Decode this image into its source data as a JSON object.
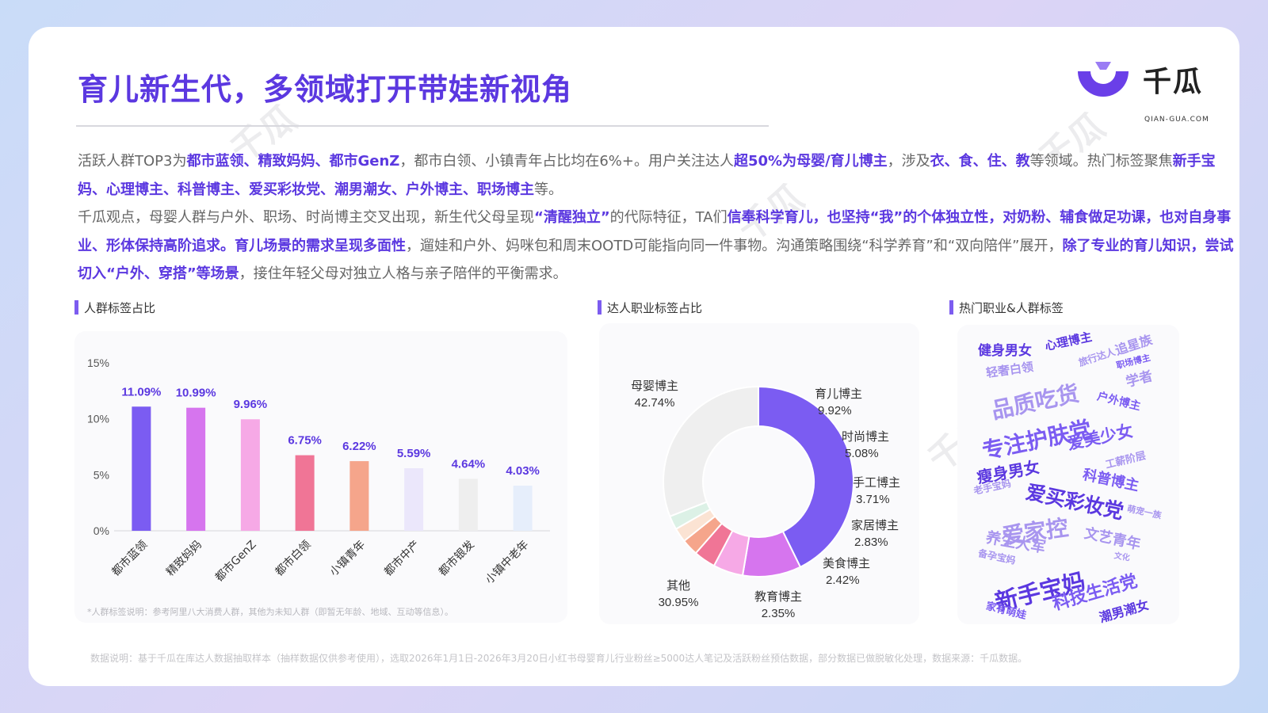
{
  "header": {
    "title": "育儿新生代，多领域打开带娃新视角"
  },
  "logo": {
    "name": "千瓜",
    "domain": "QIAN-GUA.COM"
  },
  "paragraph": {
    "p1": [
      {
        "t": "活跃人群TOP3为",
        "h": false
      },
      {
        "t": "都市蓝领、精致妈妈、都市GenZ",
        "h": true
      },
      {
        "t": "，都市白领、小镇青年占比均在6%+。用户关注达人",
        "h": false
      },
      {
        "t": "超50%为母婴/育儿博主",
        "h": true
      },
      {
        "t": "，涉及",
        "h": false
      },
      {
        "t": "衣、食、住、教",
        "h": true
      },
      {
        "t": "等领域。热门标签聚焦",
        "h": false
      },
      {
        "t": "新手宝妈、心理博主、科普博主、爱买彩妆党、潮男潮女、户外博主、职场博主",
        "h": true
      },
      {
        "t": "等。",
        "h": false
      }
    ],
    "p2": [
      {
        "t": "千瓜观点，母婴人群与户外、职场、时尚博主交叉出现，新生代父母呈现",
        "h": false
      },
      {
        "t": "“清醒独立”",
        "h": true
      },
      {
        "t": "的代际特征，TA们",
        "h": false
      },
      {
        "t": "信奉科学育儿，也坚持“我”的个体独立性，对奶粉、辅食做足功课，也对自身事业、形体保持高阶追求。育儿场景的需求呈现多面性",
        "h": true
      },
      {
        "t": "，遛娃和户外、妈咪包和周末OOTD可能指向同一件事物。沟通策略围绕“科学养育”和“双向陪伴”展开，",
        "h": false
      },
      {
        "t": "除了专业的育儿知识，尝试切入“户外、穿搭”等场景",
        "h": true
      },
      {
        "t": "，接住年轻父母对独立人格与亲子陪伴的平衡需求。",
        "h": false
      }
    ]
  },
  "sections": {
    "s1": "人群标签占比",
    "s2": "达人职业标签占比",
    "s3": "热门职业&人群标签"
  },
  "chart_note": "*人群标签说明：参考阿里八大消费人群，其他为未知人群（即暂无年龄、地域、互动等信息）。",
  "footer": "数据说明：基于千瓜在库达人数据抽取样本（抽样数据仅供参考使用），选取2026年1月1日-2026年3月20日小红书母婴育儿行业粉丝≥5000达人笔记及活跃粉丝预估数据，部分数据已做脱敏化处理，数据来源：千瓜数据。",
  "chart_data": [
    {
      "type": "bar",
      "categories": [
        "都市蓝领",
        "精致妈妈",
        "都市GenZ",
        "都市白领",
        "小镇青年",
        "都市中产",
        "都市银发",
        "小镇中老年"
      ],
      "values": [
        11.09,
        10.99,
        9.96,
        6.75,
        6.22,
        5.59,
        4.64,
        4.03
      ],
      "value_labels": [
        "11.09%",
        "10.99%",
        "9.96%",
        "6.75%",
        "6.22%",
        "5.59%",
        "4.64%",
        "4.03%"
      ],
      "colors": [
        "#7b5cf2",
        "#d675ee",
        "#f6a9e6",
        "#f07596",
        "#f5a58b",
        "#ebe7fb",
        "#eeeeee",
        "#e6eefb"
      ],
      "ylim": [
        0,
        15
      ],
      "yticks": [
        {
          "v": 0,
          "label": "0%"
        },
        {
          "v": 5,
          "label": "5%"
        },
        {
          "v": 10,
          "label": "10%"
        },
        {
          "v": 15,
          "label": "15%"
        }
      ],
      "grid": false
    },
    {
      "type": "pie",
      "donut": true,
      "slices": [
        {
          "label": "母婴博主",
          "pct": "42.74%",
          "value": 42.74,
          "color": "#7b5cf2"
        },
        {
          "label": "育儿博主",
          "pct": "9.92%",
          "value": 9.92,
          "color": "#d675ee"
        },
        {
          "label": "时尚博主",
          "pct": "5.08%",
          "value": 5.08,
          "color": "#f6a9e6"
        },
        {
          "label": "手工博主",
          "pct": "3.71%",
          "value": 3.71,
          "color": "#f07596"
        },
        {
          "label": "家居博主",
          "pct": "2.83%",
          "value": 2.83,
          "color": "#f5a58b"
        },
        {
          "label": "美食博主",
          "pct": "2.42%",
          "value": 2.42,
          "color": "#fbe3d3"
        },
        {
          "label": "教育博主",
          "pct": "2.35%",
          "value": 2.35,
          "color": "#dcf1e6"
        },
        {
          "label": "其他",
          "pct": "30.95%",
          "value": 30.95,
          "color": "#efefef"
        }
      ]
    }
  ],
  "word_cloud": [
    {
      "text": "健身男女",
      "color": "#5b38e0"
    },
    {
      "text": "心理博主",
      "color": "#5b38e0"
    },
    {
      "text": "追星族",
      "color": "#a895ef"
    },
    {
      "text": "旅行达人",
      "color": "#a895ef"
    },
    {
      "text": "职场博主",
      "color": "#7b5cf2"
    },
    {
      "text": "轻奢白领",
      "color": "#a895ef"
    },
    {
      "text": "学者",
      "color": "#a895ef"
    },
    {
      "text": "品质吃货",
      "color": "#a895ef"
    },
    {
      "text": "户外博主",
      "color": "#7b5cf2"
    },
    {
      "text": "专注护肤党",
      "color": "#7b5cf2"
    },
    {
      "text": "爱美少女",
      "color": "#7b5cf2"
    },
    {
      "text": "工薪阶层",
      "color": "#a895ef"
    },
    {
      "text": "瘦身男女",
      "color": "#5b38e0"
    },
    {
      "text": "科普博主",
      "color": "#7b5cf2"
    },
    {
      "text": "老手宝妈",
      "color": "#a895ef"
    },
    {
      "text": "爱买彩妆党",
      "color": "#5b38e0"
    },
    {
      "text": "爱家控",
      "color": "#a895ef"
    },
    {
      "text": "萌宠一族",
      "color": "#a895ef"
    },
    {
      "text": "养生大军",
      "color": "#a895ef"
    },
    {
      "text": "文艺青年",
      "color": "#a895ef"
    },
    {
      "text": "备孕宝妈",
      "color": "#a895ef"
    },
    {
      "text": "文化",
      "color": "#a895ef"
    },
    {
      "text": "新手宝妈",
      "color": "#5b38e0"
    },
    {
      "text": "科技生活党",
      "color": "#7b5cf2"
    },
    {
      "text": "家有萌娃",
      "color": "#7b5cf2"
    },
    {
      "text": "潮男潮女",
      "color": "#5b38e0"
    }
  ]
}
